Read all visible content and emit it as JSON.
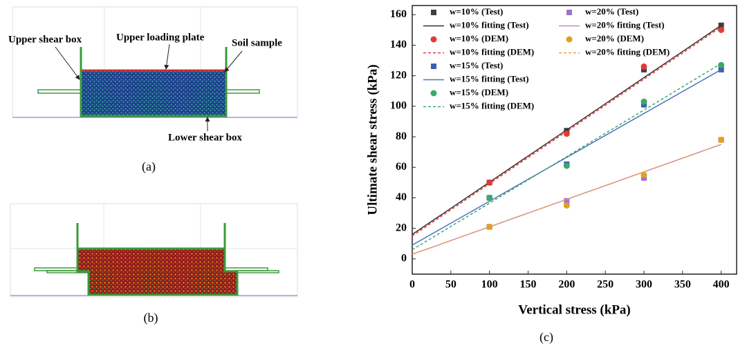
{
  "figure": {
    "panel_a": {
      "labels": [
        "Upper shear box",
        "Upper loading plate",
        "Soil sample",
        "Lower shear box"
      ],
      "caption": "(a)"
    },
    "panel_b": {
      "caption": "(b)"
    },
    "panel_c": {
      "caption": "(c)"
    }
  },
  "chart_data": {
    "type": "scatter",
    "xlabel": "Vertical stress (kPa)",
    "ylabel": "Ultimate shear stress (kPa)",
    "xlim": [
      0,
      420
    ],
    "ylim": [
      -10,
      166
    ],
    "xticks": [
      0,
      50,
      100,
      150,
      200,
      250,
      300,
      350,
      400
    ],
    "yticks": [
      0,
      20,
      40,
      60,
      80,
      100,
      120,
      140,
      160
    ],
    "series": [
      {
        "name": "w=10% (Test)",
        "color": "#404040",
        "marker": "square",
        "x": [
          100,
          200,
          300,
          400
        ],
        "values": [
          50,
          84,
          124,
          153
        ]
      },
      {
        "name": "w=10% fitting (Test)",
        "color": "#303030",
        "dash": false,
        "x": [
          0,
          400
        ],
        "values": [
          16,
          153
        ]
      },
      {
        "name": "w=10% (DEM)",
        "color": "#e23a3a",
        "marker": "circle",
        "x": [
          100,
          200,
          300,
          400
        ],
        "values": [
          50,
          82,
          126,
          150
        ]
      },
      {
        "name": "w=10% fitting (DEM)",
        "color": "#e23a3a",
        "dash": true,
        "x": [
          0,
          400
        ],
        "values": [
          15,
          152
        ]
      },
      {
        "name": "w=15% (Test)",
        "color": "#3a5fb0",
        "marker": "square",
        "x": [
          100,
          200,
          300,
          400
        ],
        "values": [
          40,
          62,
          101,
          124
        ]
      },
      {
        "name": "w=15% fitting (Test)",
        "color": "#4a72c0",
        "dash": false,
        "x": [
          0,
          400
        ],
        "values": [
          9,
          124
        ]
      },
      {
        "name": "w=15% (DEM)",
        "color": "#3aa86a",
        "marker": "circle",
        "x": [
          100,
          200,
          300,
          400
        ],
        "values": [
          40,
          61,
          103,
          127
        ]
      },
      {
        "name": "w=15% fitting (DEM)",
        "color": "#3aa86a",
        "dash": true,
        "x": [
          0,
          400
        ],
        "values": [
          6,
          128
        ]
      },
      {
        "name": "w=20% (Test)",
        "color": "#a070d0",
        "marker": "square",
        "x": [
          100,
          200,
          300,
          400
        ],
        "values": [
          21,
          38,
          53,
          78
        ]
      },
      {
        "name": "w=20% fitting (Test)",
        "color": "#c08cc8",
        "dash": false,
        "x": [
          0,
          400
        ],
        "values": [
          3,
          75
        ]
      },
      {
        "name": "w=20% (DEM)",
        "color": "#e0a020",
        "marker": "circle",
        "x": [
          100,
          200,
          300,
          400
        ],
        "values": [
          21,
          35,
          55,
          78
        ]
      },
      {
        "name": "w=20% fitting (DEM)",
        "color": "#e8a040",
        "dash": true,
        "x": [
          0,
          400
        ],
        "values": [
          3,
          75
        ]
      }
    ]
  }
}
